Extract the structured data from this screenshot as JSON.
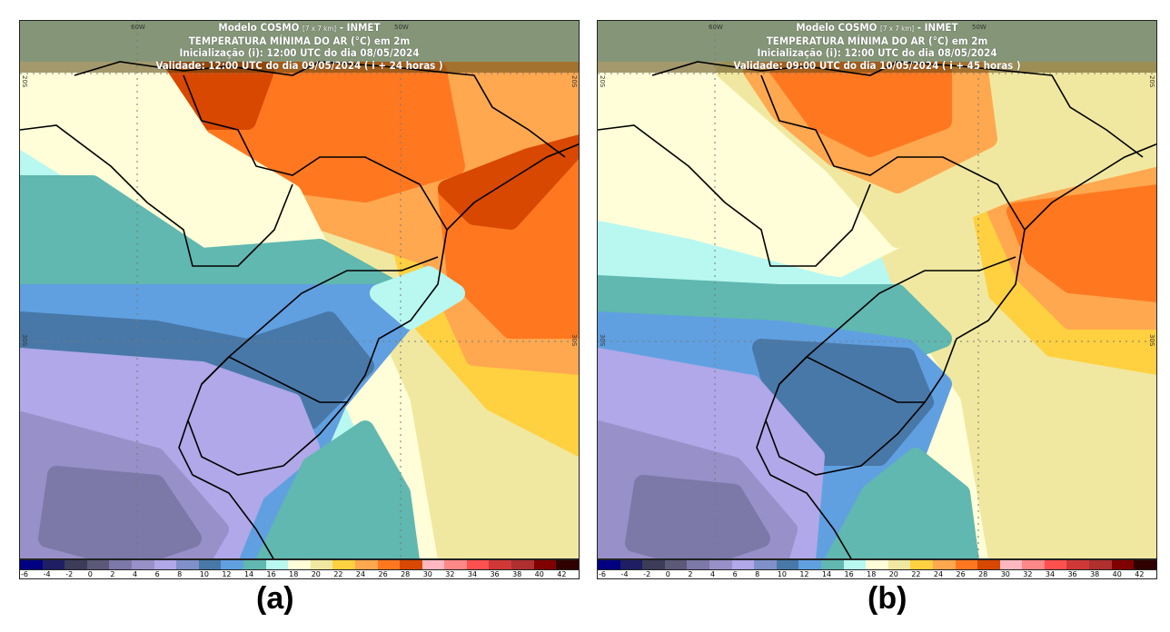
{
  "panels": [
    {
      "label": "(a)",
      "header": {
        "model": "Modelo COSMO",
        "resolution": "[7 x 7 km]",
        "agency": "- INMET",
        "variable": "TEMPERATURA MÍNIMA DO AR (°C) em 2m",
        "init": "Inicialização (i): 12:00 UTC do dia 08/05/2024",
        "valid": "Validade: 12:00 UTC do dia 09/05/2024 ( i + 24 horas )"
      }
    },
    {
      "label": "(b)",
      "header": {
        "model": "Modelo COSMO",
        "resolution": "[7 x 7 km]",
        "agency": "- INMET",
        "variable": "TEMPERATURA MÍNIMA DO AR (°C) em 2m",
        "init": "Inicialização (i): 12:00 UTC do dia 08/05/2024",
        "valid": "Validade: 09:00 UTC do dia 10/05/2024 ( i + 45 horas )"
      }
    }
  ],
  "grid_labels": {
    "lon": [
      "60W",
      "50W"
    ],
    "lat": [
      "20S",
      "30S"
    ]
  },
  "colorbar": {
    "unit": "°C",
    "labels": [
      "-6",
      "-4",
      "-2",
      "0",
      "2",
      "4",
      "6",
      "8",
      "10",
      "12",
      "14",
      "16",
      "18",
      "20",
      "22",
      "24",
      "26",
      "28",
      "30",
      "32",
      "34",
      "36",
      "38",
      "40",
      "42"
    ],
    "colors": [
      "#000080",
      "#1e1e64",
      "#3c3c58",
      "#5c5878",
      "#7c78a8",
      "#9890c8",
      "#b0a8e8",
      "#8090c8",
      "#4878a8",
      "#60a0e0",
      "#60b8b0",
      "#b8f8f0",
      "#fffed8",
      "#f0e8a0",
      "#ffd040",
      "#ffa850",
      "#ff7820",
      "#d84800",
      "#ffb8c0",
      "#ff8888",
      "#ff5050",
      "#d03838",
      "#b03030",
      "#800000",
      "#300000"
    ]
  }
}
